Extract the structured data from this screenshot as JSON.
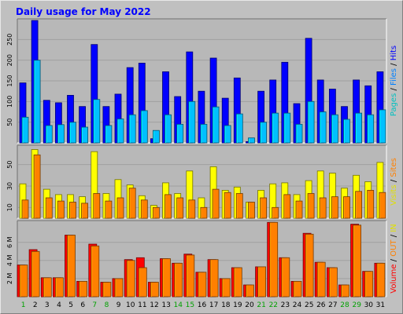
{
  "chart_data": {
    "title": "Daily usage for May 2022",
    "days": [
      "1",
      "2",
      "3",
      "4",
      "5",
      "6",
      "7",
      "8",
      "9",
      "10",
      "11",
      "12",
      "13",
      "14",
      "15",
      "16",
      "17",
      "18",
      "19",
      "20",
      "21",
      "22",
      "23",
      "24",
      "25",
      "26",
      "27",
      "28",
      "29",
      "30",
      "31"
    ],
    "weekend_days": [
      "1",
      "7",
      "8",
      "14",
      "15",
      "21",
      "22",
      "28",
      "29"
    ],
    "panels": [
      {
        "type": "bar",
        "series": [
          {
            "name": "Hits",
            "color": "#0000ff",
            "values": [
              145,
              296,
              103,
              97,
              115,
              88,
              238,
              88,
              118,
              182,
              193,
              10,
              172,
              112,
              220,
              125,
              205,
              108,
              157,
              3,
              125,
              152,
              195,
              95,
              253,
              152,
              130,
              88,
              152,
              138,
              172
            ]
          },
          {
            "name": "Files",
            "color": "#00c0ff",
            "values": [
              62,
              200,
              42,
              44,
              50,
              38,
              105,
              42,
              58,
              68,
              78,
              30,
              68,
              45,
              100,
              45,
              87,
              42,
              70,
              12,
              50,
              72,
              72,
              45,
              100,
              75,
              68,
              57,
              72,
              68,
              80
            ]
          },
          {
            "name": "Pages",
            "color": "#00e0e0",
            "values": []
          }
        ],
        "ylim": [
          0,
          300
        ],
        "yticks": [
          "50",
          "100",
          "150",
          "200",
          "250"
        ],
        "side_label": {
          "parts": [
            {
              "text": "Pages",
              "color": "#00c0c0"
            },
            {
              "text": " / ",
              "color": "#000000"
            },
            {
              "text": "Files",
              "color": "#0080ff"
            },
            {
              "text": " / ",
              "color": "#000000"
            },
            {
              "text": "Hits",
              "color": "#0000ff"
            }
          ]
        }
      },
      {
        "type": "bar",
        "series": [
          {
            "name": "Visits",
            "color": "#ffff00",
            "values": [
              32,
              64,
              27,
              22,
              22,
              20,
              62,
              23,
              36,
              31,
              21,
              12,
              33,
              23,
              44,
              19,
              48,
              26,
              29,
              15,
              26,
              32,
              33,
              22,
              35,
              44,
              42,
              28,
              40,
              34,
              52
            ]
          },
          {
            "name": "Sites",
            "color": "#ff8000",
            "values": [
              17,
              59,
              19,
              16,
              15,
              14,
              23,
              16,
              19,
              28,
              17,
              10,
              22,
              19,
              17,
              10,
              27,
              24,
              23,
              15,
              19,
              10,
              22,
              16,
              23,
              19,
              20,
              20,
              25,
              26,
              24
            ]
          }
        ],
        "ylim": [
          0,
          68
        ],
        "yticks": [
          "10",
          "30",
          "50"
        ],
        "side_label": {
          "parts": [
            {
              "text": "Visits",
              "color": "#e0e000"
            },
            {
              "text": " / ",
              "color": "#000000"
            },
            {
              "text": "Sites",
              "color": "#ff8000"
            }
          ]
        }
      },
      {
        "type": "bar",
        "series": [
          {
            "name": "Volume",
            "color": "#ff0000",
            "values": [
              3.5,
              5.2,
              2.1,
              2.1,
              6.8,
              1.7,
              5.8,
              1.6,
              2.0,
              4.1,
              4.3,
              1.6,
              4.2,
              3.7,
              4.7,
              2.7,
              4.1,
              2.0,
              3.2,
              1.3,
              3.3,
              8.2,
              4.3,
              1.7,
              7.0,
              3.8,
              3.2,
              1.3,
              8.0,
              2.8,
              3.7
            ]
          },
          {
            "name": "OUT",
            "color": "#ff8000",
            "values": [
              3.5,
              5.0,
              2.1,
              2.1,
              6.8,
              1.7,
              5.6,
              1.6,
              2.0,
              4.0,
              3.2,
              1.6,
              4.2,
              3.7,
              4.6,
              2.7,
              4.1,
              2.0,
              3.2,
              1.3,
              3.3,
              8.2,
              4.3,
              1.7,
              6.9,
              3.8,
              3.2,
              1.3,
              7.9,
              2.8,
              3.7
            ]
          },
          {
            "name": "IN",
            "color": "#e0e000",
            "values": []
          }
        ],
        "ylim": [
          0,
          8.4
        ],
        "yticks": [
          "2 M",
          "4 M",
          "6 M"
        ],
        "side_label": {
          "parts": [
            {
              "text": "Volume",
              "color": "#ff0000"
            },
            {
              "text": " / ",
              "color": "#000000"
            },
            {
              "text": "OUT",
              "color": "#ff8000"
            },
            {
              "text": " / ",
              "color": "#000000"
            },
            {
              "text": "IN",
              "color": "#e0e000"
            }
          ]
        }
      }
    ],
    "colors": {
      "panel_bg": "#b8b8b8",
      "frame": "#c0c0c0",
      "weekday_label": "#000000",
      "weekend_label": "#00a000"
    }
  }
}
